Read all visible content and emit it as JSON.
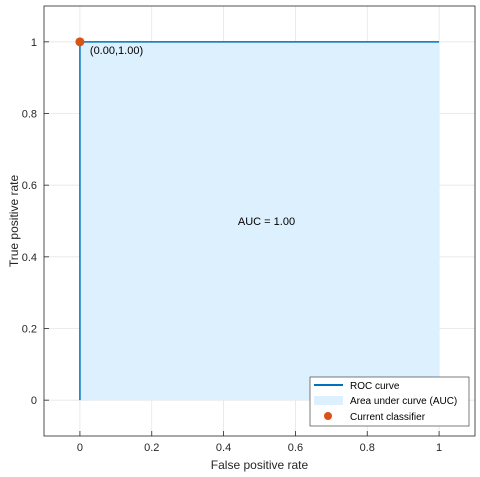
{
  "chart_data": {
    "type": "line",
    "xlabel": "False positive rate",
    "ylabel": "True positive rate",
    "xlim": [
      -0.1,
      1.1
    ],
    "ylim": [
      -0.1,
      1.1
    ],
    "x_ticks": [
      0,
      0.2,
      0.4,
      0.6,
      0.8,
      1
    ],
    "x_tick_labels": [
      "0",
      "0.2",
      "0.4",
      "0.6",
      "0.8",
      "1"
    ],
    "y_ticks": [
      0,
      0.2,
      0.4,
      0.6,
      0.8,
      1
    ],
    "y_tick_labels": [
      "0",
      "0.2",
      "0.4",
      "0.6",
      "0.8",
      "1"
    ],
    "grid": true,
    "series": [
      {
        "name": "ROC curve",
        "kind": "line",
        "color": "#0072BD",
        "x": [
          0,
          0,
          1
        ],
        "y": [
          0,
          1,
          1
        ]
      },
      {
        "name": "Area under curve (AUC)",
        "kind": "area",
        "color": "#DDF0FD",
        "x": [
          0,
          0,
          1,
          1
        ],
        "y": [
          0,
          1,
          1,
          0
        ]
      },
      {
        "name": "Current classifier",
        "kind": "scatter",
        "color": "#D95319",
        "x": [
          0
        ],
        "y": [
          1
        ]
      }
    ],
    "annotations": [
      {
        "text": "(0.00,1.00)",
        "x": 0,
        "y": 1
      },
      {
        "text": "AUC = 1.00",
        "x": 0.5,
        "y": 0.5
      }
    ],
    "legend": {
      "placement": "bottom-right",
      "entries": [
        "ROC curve",
        "Area under curve (AUC)",
        "Current classifier"
      ]
    }
  }
}
